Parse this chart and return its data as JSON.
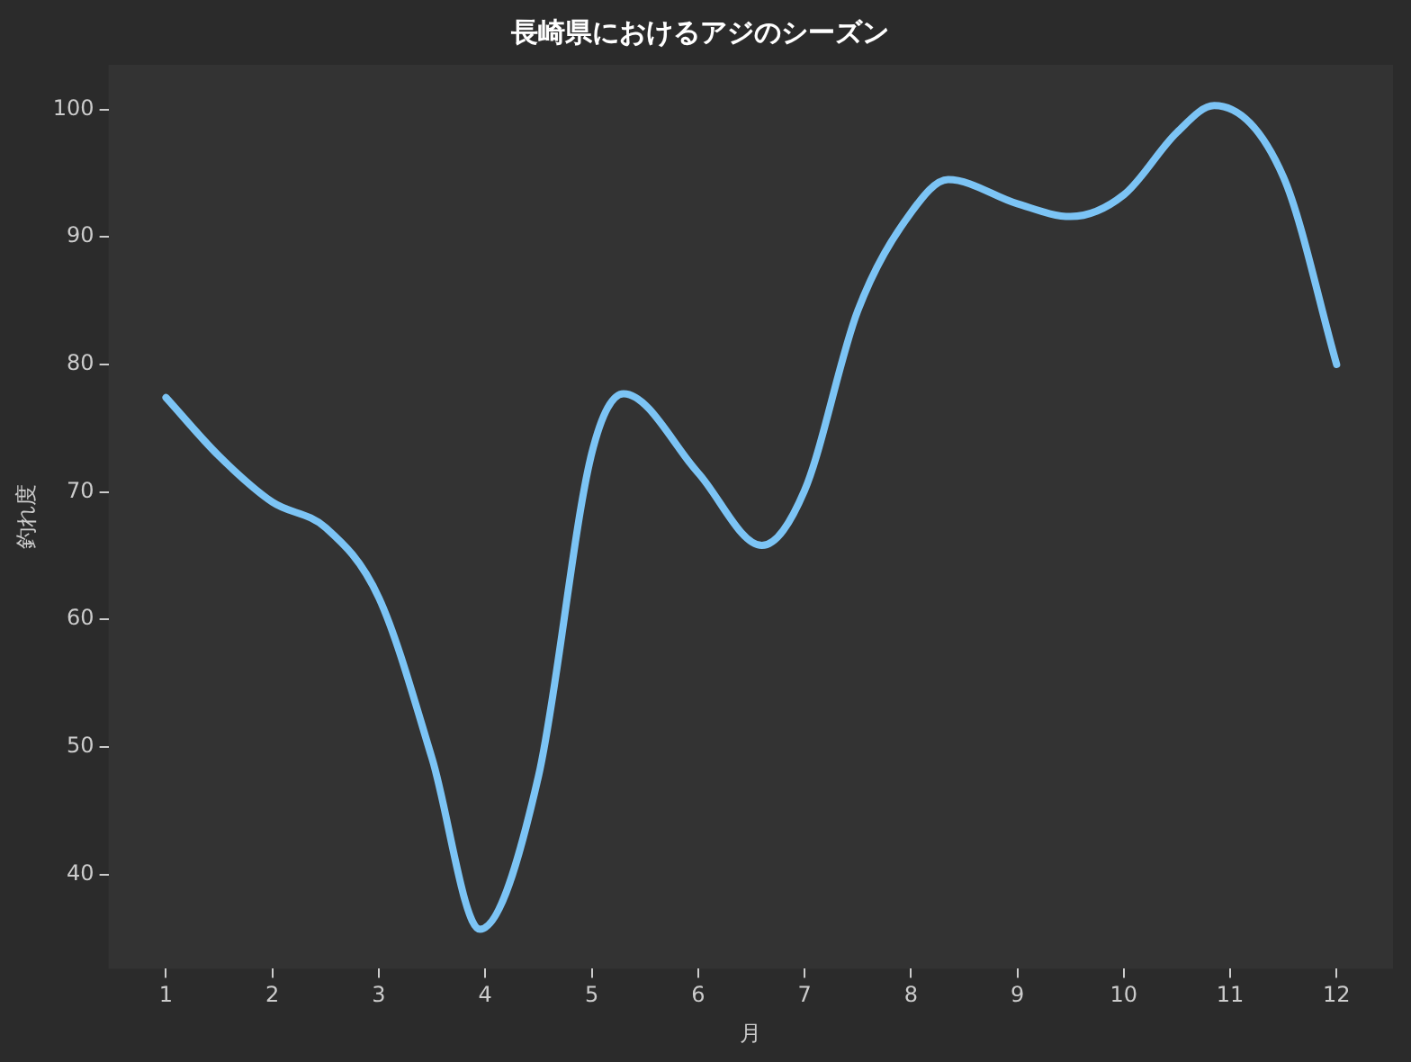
{
  "chart_data": {
    "type": "line",
    "title": "長崎県におけるアジのシーズン",
    "xlabel": "月",
    "ylabel": "釣れ度",
    "x": [
      1,
      1.5,
      2,
      2.5,
      3,
      3.5,
      3.95,
      4.5,
      5,
      5.3,
      6,
      6.6,
      7,
      7.5,
      8,
      8.35,
      9,
      9.5,
      10,
      10.5,
      10.85,
      11.5,
      12
    ],
    "series": [
      {
        "color": "#7cc4f5",
        "values": [
          77.4,
          72.8,
          69.2,
          67.2,
          61.7,
          49.1,
          35.7,
          47.7,
          73,
          77.7,
          71.5,
          65.8,
          70.1,
          84.2,
          91.9,
          94.5,
          92.6,
          91.6,
          93.3,
          98.2,
          100.3,
          94.7,
          80
        ]
      }
    ],
    "xlim": [
      0.46,
      12.53
    ],
    "xticks": [
      1,
      2,
      3,
      4,
      5,
      6,
      7,
      8,
      9,
      10,
      11,
      12
    ],
    "ylim": [
      32.6,
      103.5
    ],
    "yticks": [
      40,
      50,
      60,
      70,
      80,
      90,
      100
    ],
    "grid": false,
    "legend": false,
    "marker": "none",
    "line_style": "solid"
  }
}
